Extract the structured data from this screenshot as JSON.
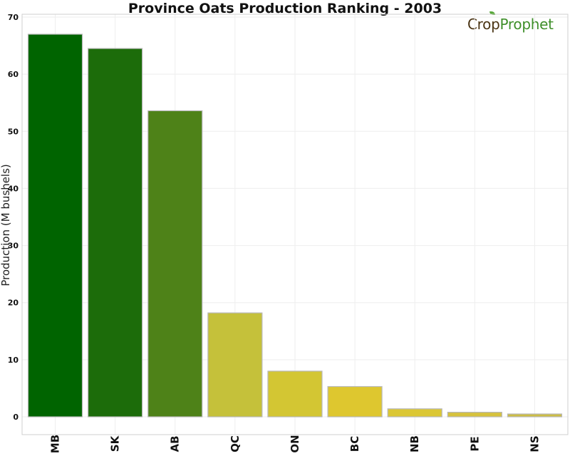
{
  "logo": {
    "crop": "Crop",
    "prophet": "Prophet"
  },
  "chart_data": {
    "type": "bar",
    "title": "Province Oats Production Ranking - 2003",
    "xlabel": "",
    "ylabel": "Production (M bushels)",
    "categories": [
      "MB",
      "SK",
      "AB",
      "QC",
      "ON",
      "BC",
      "NB",
      "PE",
      "NS"
    ],
    "values": [
      67.0,
      64.5,
      53.6,
      18.2,
      8.0,
      5.3,
      1.4,
      0.8,
      0.5
    ],
    "colors": [
      "#006400",
      "#1c6c0a",
      "#4e8218",
      "#c5c13a",
      "#d3c633",
      "#dec72f",
      "#dbc734",
      "#d6c23d",
      "#ccbd45"
    ],
    "ylim": [
      0,
      70
    ],
    "yticks": [
      0,
      10,
      20,
      30,
      40,
      50,
      60,
      70
    ],
    "grid": true,
    "legend": "none"
  }
}
